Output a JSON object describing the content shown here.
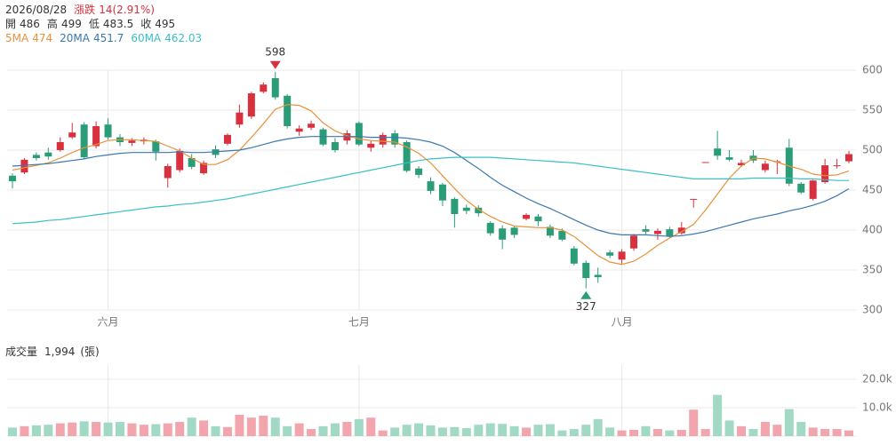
{
  "chart_data": {
    "type": "candlestick",
    "date": "2026/08/28",
    "change_label": "漲跌",
    "change": "14(2.91%)",
    "info": [
      {
        "label": "開",
        "value": 486
      },
      {
        "label": "高",
        "value": 499
      },
      {
        "label": "低",
        "value": 483.5
      },
      {
        "label": "收",
        "value": 495
      }
    ],
    "up_color": "#d9303e",
    "down_color": "#2a9d78",
    "volume_up_color": "#f2a5ac",
    "volume_down_color": "#a2d9c4",
    "categories": [
      null,
      null,
      null,
      null,
      null,
      null,
      null,
      null,
      "六月",
      null,
      null,
      null,
      null,
      null,
      null,
      null,
      null,
      null,
      null,
      null,
      null,
      null,
      null,
      null,
      null,
      null,
      null,
      null,
      null,
      "七月",
      null,
      null,
      null,
      null,
      null,
      null,
      null,
      null,
      null,
      null,
      null,
      null,
      null,
      null,
      null,
      null,
      null,
      null,
      null,
      null,
      null,
      "八月",
      null,
      null,
      null,
      null,
      null,
      null,
      null,
      null,
      null,
      null,
      null,
      null,
      null,
      null,
      null,
      null,
      null,
      null,
      null
    ],
    "open": [
      468,
      472,
      494,
      497,
      500,
      516,
      532,
      505,
      532,
      516,
      509,
      511,
      511,
      465,
      475,
      490,
      471,
      501,
      508,
      532,
      542,
      573,
      590,
      568,
      523,
      528,
      526,
      510,
      512,
      534,
      503,
      507,
      521,
      510,
      477,
      461,
      457,
      439,
      428,
      428,
      409,
      402,
      403,
      414,
      417,
      404,
      399,
      377,
      359,
      344,
      372,
      363,
      377,
      401,
      395,
      401,
      396,
      438,
      484,
      502,
      491,
      481,
      493,
      475,
      485,
      503,
      458,
      439,
      460,
      480,
      486
    ],
    "high": [
      471,
      490,
      497,
      503,
      516,
      534,
      535,
      536,
      540,
      520,
      515,
      516,
      513,
      483,
      502,
      495,
      487,
      506,
      521,
      557,
      573,
      585,
      598,
      570,
      531,
      537,
      528,
      515,
      525,
      536,
      512,
      522,
      525,
      512,
      480,
      466,
      459,
      441,
      432,
      431,
      411,
      406,
      405,
      421,
      420,
      407,
      402,
      380,
      362,
      353,
      375,
      376,
      395,
      406,
      402,
      404,
      410,
      439,
      485,
      524,
      500,
      488,
      500,
      487,
      488,
      514,
      460,
      463,
      489,
      489,
      499
    ],
    "low": [
      452,
      470,
      487,
      488,
      498,
      514,
      489,
      502,
      513,
      505,
      505,
      507,
      487,
      453,
      472,
      476,
      469,
      490,
      506,
      528,
      539,
      571,
      563,
      527,
      518,
      525,
      505,
      497,
      507,
      505,
      498,
      503,
      503,
      472,
      465,
      445,
      430,
      403,
      420,
      417,
      393,
      376,
      390,
      412,
      405,
      390,
      386,
      356,
      327,
      334,
      365,
      358,
      374,
      395,
      388,
      390,
      394,
      428,
      484,
      488,
      486,
      479,
      484,
      472,
      470,
      455,
      445,
      437,
      458,
      477,
      483.5
    ],
    "close": [
      461,
      488,
      490,
      492,
      510,
      522,
      491,
      530,
      516,
      510,
      512,
      513,
      498,
      480,
      499,
      479,
      484,
      494,
      519,
      547,
      571,
      582,
      566,
      530,
      527,
      533,
      507,
      500,
      521,
      507,
      508,
      519,
      507,
      474,
      469,
      449,
      437,
      420,
      424,
      421,
      396,
      388,
      394,
      419,
      411,
      393,
      388,
      358,
      340,
      341,
      368,
      373,
      393,
      398,
      399,
      392,
      403,
      439,
      485,
      493,
      488,
      484,
      487,
      483,
      486,
      458,
      447,
      462,
      481,
      481,
      495
    ],
    "ma": [
      {
        "name": "5MA",
        "color": "#e8913a",
        "value": 474,
        "values": [
          475,
          478,
          481,
          484,
          490,
          497,
          503,
          507,
          512,
          513,
          513,
          512,
          511,
          505,
          499,
          490,
          482,
          482,
          488,
          500,
          516,
          533,
          551,
          557,
          556,
          549,
          534,
          524,
          518,
          514,
          512,
          511,
          510,
          504,
          496,
          484,
          468,
          452,
          437,
          426,
          417,
          410,
          405,
          404,
          403,
          403,
          400,
          392,
          380,
          368,
          360,
          357,
          361,
          370,
          381,
          390,
          398,
          407,
          425,
          445,
          465,
          480,
          490,
          489,
          485,
          480,
          476,
          470,
          468,
          469,
          474
        ]
      },
      {
        "name": "20MA",
        "color": "#3a78b0",
        "value": 451.7,
        "values": [
          480,
          481,
          482,
          483,
          485,
          487,
          489,
          492,
          494,
          496,
          497,
          497,
          497,
          497,
          498,
          497,
          497,
          498,
          499,
          500,
          503,
          507,
          511,
          514,
          516,
          517,
          517,
          517,
          517,
          517,
          516,
          516,
          516,
          515,
          513,
          510,
          505,
          497,
          487,
          477,
          466,
          456,
          448,
          440,
          433,
          427,
          420,
          413,
          406,
          400,
          396,
          394,
          394,
          394,
          393,
          392,
          393,
          395,
          398,
          402,
          406,
          410,
          414,
          417,
          420,
          424,
          427,
          431,
          436,
          443,
          451.7
        ]
      },
      {
        "name": "60MA",
        "color": "#3bbfc4",
        "value": 462.03,
        "values": [
          408,
          409,
          410,
          412,
          413,
          415,
          417,
          419,
          421,
          423,
          425,
          427,
          429,
          430,
          432,
          433,
          435,
          437,
          439,
          442,
          445,
          448,
          451,
          454,
          457,
          460,
          463,
          466,
          469,
          472,
          475,
          478,
          481,
          484,
          487,
          489,
          490,
          491,
          491,
          491,
          491,
          490,
          489,
          488,
          487,
          486,
          485,
          484,
          482,
          480,
          478,
          476,
          474,
          472,
          470,
          468,
          466,
          464,
          464,
          464,
          464,
          464,
          465,
          465,
          465,
          465,
          464,
          464,
          463,
          462,
          462.03
        ]
      }
    ],
    "ylim": [
      300,
      600
    ],
    "yticks": [
      300,
      350,
      400,
      450,
      500,
      550,
      600
    ],
    "high_mark": 598,
    "low_mark": 327,
    "volume_title": "成交量",
    "volume_last_label": "1,994",
    "volume_unit": "(張)",
    "volume": [
      3000,
      3500,
      3800,
      4000,
      4500,
      4800,
      5200,
      5000,
      4800,
      5000,
      4500,
      4000,
      4200,
      4500,
      5000,
      6500,
      5500,
      3500,
      3200,
      7500,
      6500,
      7200,
      6500,
      3500,
      4500,
      2500,
      3500,
      4500,
      5000,
      6000,
      6500,
      2000,
      3000,
      4000,
      4500,
      3800,
      3000,
      3200,
      2800,
      4000,
      4500,
      4300,
      3500,
      3000,
      4000,
      4200,
      2000,
      2500,
      4000,
      6000,
      3000,
      2000,
      2200,
      3500,
      2500,
      2000,
      2200,
      9300,
      2500,
      14500,
      5500,
      3500,
      2500,
      5000,
      4000,
      9500,
      5000,
      3000,
      2500,
      2500,
      1994
    ],
    "volume_ylim": [
      0,
      25000
    ],
    "volume_yticks": [
      {
        "value": 10000,
        "label": "10.0k"
      },
      {
        "value": 20000,
        "label": "20.0k"
      }
    ]
  }
}
